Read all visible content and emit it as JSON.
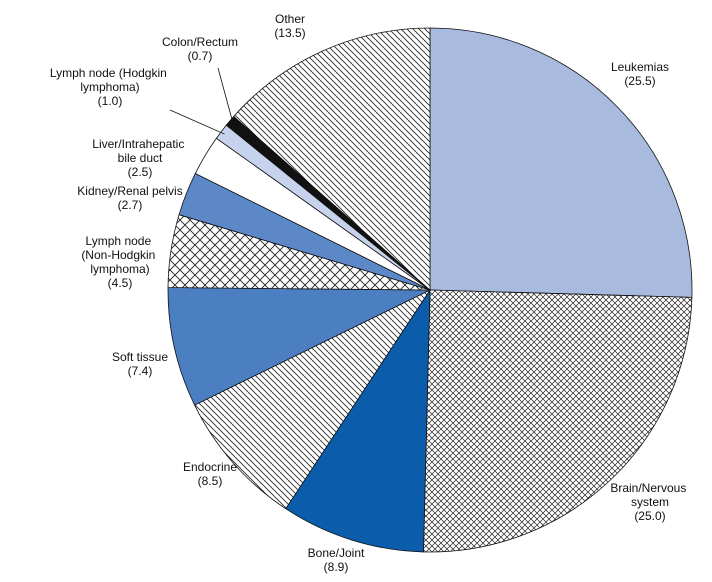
{
  "chart_data": {
    "type": "pie",
    "categories": [
      "Leukemias",
      "Brain/Nervous system",
      "Bone/Joint",
      "Endocrine",
      "Soft tissue",
      "Lymph node (Non-Hodgkin lymphoma)",
      "Kidney/Renal pelvis",
      "Liver/Intrahepatic bile duct",
      "Lymph node (Hodgkin lymphoma)",
      "Colon/Rectum",
      "Other"
    ],
    "values": [
      25.5,
      25.0,
      8.9,
      8.5,
      7.4,
      4.5,
      2.7,
      2.5,
      1.0,
      0.7,
      13.5
    ],
    "value_labels": [
      "(25.5)",
      "(25.0)",
      "(8.9)",
      "(8.5)",
      "(7.4)",
      "(4.5)",
      "(2.7)",
      "(2.5)",
      "(1.0)",
      "(0.7)",
      "(13.5)"
    ],
    "colors": [
      "#a9badf",
      "#ffffff",
      "#0b5cab",
      "#ffffff",
      "#4b7fc2",
      "#ffffff",
      "#5d88c8",
      "#ffffff",
      "#c7d2ec",
      "#111111",
      "#ffffff"
    ],
    "patterns": [
      null,
      "fine-crosshatch",
      null,
      "hatch-down",
      null,
      "crosshatch",
      null,
      null,
      null,
      null,
      "hatch-down"
    ],
    "start_angle": 0,
    "direction": "clockwise"
  }
}
